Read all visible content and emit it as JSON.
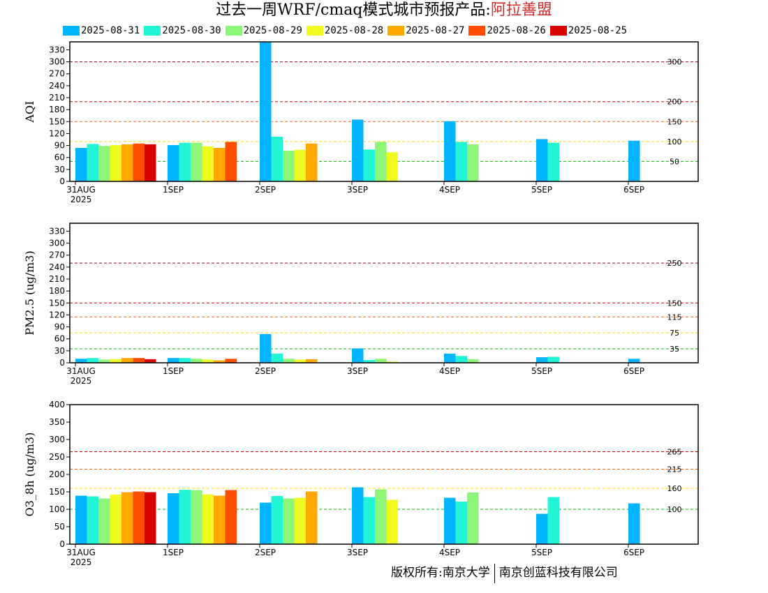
{
  "title": {
    "prefix": "过去一周WRF/cmaq模式城市预报产品:",
    "city": "阿拉善盟"
  },
  "legend": [
    {
      "label": "2025-08-31",
      "color": "#00b4ff"
    },
    {
      "label": "2025-08-30",
      "color": "#21f5d5"
    },
    {
      "label": "2025-08-29",
      "color": "#8df577"
    },
    {
      "label": "2025-08-28",
      "color": "#f0fa1e"
    },
    {
      "label": "2025-08-27",
      "color": "#ffa800"
    },
    {
      "label": "2025-08-26",
      "color": "#ff4d00"
    },
    {
      "label": "2025-08-25",
      "color": "#d90000"
    }
  ],
  "copyright": {
    "left": "版权所有:南京大学",
    "right": "南京创蓝科技有限公司"
  },
  "chart_data": [
    {
      "type": "bar",
      "ylabel": "AQI",
      "ylim": [
        0,
        350
      ],
      "yticks": [
        0,
        30,
        60,
        90,
        120,
        150,
        180,
        210,
        240,
        270,
        300,
        330
      ],
      "categories": [
        "31AUG",
        "1SEP",
        "2SEP",
        "3SEP",
        "4SEP",
        "5SEP",
        "6SEP"
      ],
      "first_category_year": "2025",
      "reference_lines": [
        {
          "value": 300,
          "label": "300",
          "color": "#990033"
        },
        {
          "value": 200,
          "label": "200",
          "color": "#cc0000"
        },
        {
          "value": 150,
          "label": "150",
          "color": "#ff6600"
        },
        {
          "value": 100,
          "label": "100",
          "color": "#ffdd00"
        },
        {
          "value": 50,
          "label": "50",
          "color": "#00bb00"
        }
      ],
      "series": [
        {
          "name": "2025-08-31",
          "values": [
            84,
            91,
            350,
            155,
            151,
            106,
            102
          ]
        },
        {
          "name": "2025-08-30",
          "values": [
            94,
            97,
            112,
            80,
            99,
            97,
            null
          ]
        },
        {
          "name": "2025-08-29",
          "values": [
            89,
            97,
            77,
            99,
            93,
            null,
            null
          ]
        },
        {
          "name": "2025-08-28",
          "values": [
            91,
            88,
            79,
            73,
            null,
            null,
            null
          ]
        },
        {
          "name": "2025-08-27",
          "values": [
            93,
            84,
            95,
            null,
            null,
            null,
            null
          ]
        },
        {
          "name": "2025-08-26",
          "values": [
            95,
            99,
            null,
            null,
            null,
            null,
            null
          ]
        },
        {
          "name": "2025-08-25",
          "values": [
            93,
            null,
            null,
            null,
            null,
            null,
            null
          ]
        }
      ]
    },
    {
      "type": "bar",
      "ylabel": "PM2.5 (ug/m3)",
      "ylim": [
        0,
        350
      ],
      "yticks": [
        0,
        30,
        60,
        90,
        120,
        150,
        180,
        210,
        240,
        270,
        300,
        330
      ],
      "categories": [
        "31AUG",
        "1SEP",
        "2SEP",
        "3SEP",
        "4SEP",
        "5SEP",
        "6SEP"
      ],
      "first_category_year": "2025",
      "reference_lines": [
        {
          "value": 250,
          "label": "250",
          "color": "#990033"
        },
        {
          "value": 150,
          "label": "150",
          "color": "#cc0000"
        },
        {
          "value": 115,
          "label": "115",
          "color": "#ff6600"
        },
        {
          "value": 75,
          "label": "75",
          "color": "#ffdd00"
        },
        {
          "value": 35,
          "label": "35",
          "color": "#00bb00"
        }
      ],
      "series": [
        {
          "name": "2025-08-31",
          "values": [
            10,
            12,
            72,
            36,
            23,
            14,
            10
          ]
        },
        {
          "name": "2025-08-30",
          "values": [
            12,
            12,
            23,
            7,
            17,
            15,
            null
          ]
        },
        {
          "name": "2025-08-29",
          "values": [
            8,
            10,
            10,
            10,
            9,
            null,
            null
          ]
        },
        {
          "name": "2025-08-28",
          "values": [
            9,
            8,
            8,
            3,
            null,
            null,
            null
          ]
        },
        {
          "name": "2025-08-27",
          "values": [
            12,
            6,
            9,
            null,
            null,
            null,
            null
          ]
        },
        {
          "name": "2025-08-26",
          "values": [
            12,
            10,
            null,
            null,
            null,
            null,
            null
          ]
        },
        {
          "name": "2025-08-25",
          "values": [
            9,
            null,
            null,
            null,
            null,
            null,
            null
          ]
        }
      ]
    },
    {
      "type": "bar",
      "ylabel": "O3_8h (ug/m3)",
      "ylim": [
        0,
        400
      ],
      "yticks": [
        0,
        50,
        100,
        150,
        200,
        250,
        300,
        350,
        400
      ],
      "categories": [
        "31AUG",
        "1SEP",
        "2SEP",
        "3SEP",
        "4SEP",
        "5SEP",
        "6SEP"
      ],
      "first_category_year": "2025",
      "reference_lines": [
        {
          "value": 265,
          "label": "265",
          "color": "#cc0000"
        },
        {
          "value": 215,
          "label": "215",
          "color": "#ff6600"
        },
        {
          "value": 160,
          "label": "160",
          "color": "#ffdd00"
        },
        {
          "value": 100,
          "label": "100",
          "color": "#00bb00"
        }
      ],
      "series": [
        {
          "name": "2025-08-31",
          "values": [
            139,
            146,
            119,
            163,
            133,
            87,
            117
          ]
        },
        {
          "name": "2025-08-30",
          "values": [
            137,
            156,
            138,
            135,
            122,
            135,
            null
          ]
        },
        {
          "name": "2025-08-29",
          "values": [
            131,
            155,
            131,
            157,
            148,
            null,
            null
          ]
        },
        {
          "name": "2025-08-28",
          "values": [
            142,
            143,
            133,
            127,
            null,
            null,
            null
          ]
        },
        {
          "name": "2025-08-27",
          "values": [
            149,
            139,
            151,
            null,
            null,
            null,
            null
          ]
        },
        {
          "name": "2025-08-26",
          "values": [
            151,
            155,
            null,
            null,
            null,
            null,
            null
          ]
        },
        {
          "name": "2025-08-25",
          "values": [
            149,
            null,
            null,
            null,
            null,
            null,
            null
          ]
        }
      ]
    }
  ]
}
